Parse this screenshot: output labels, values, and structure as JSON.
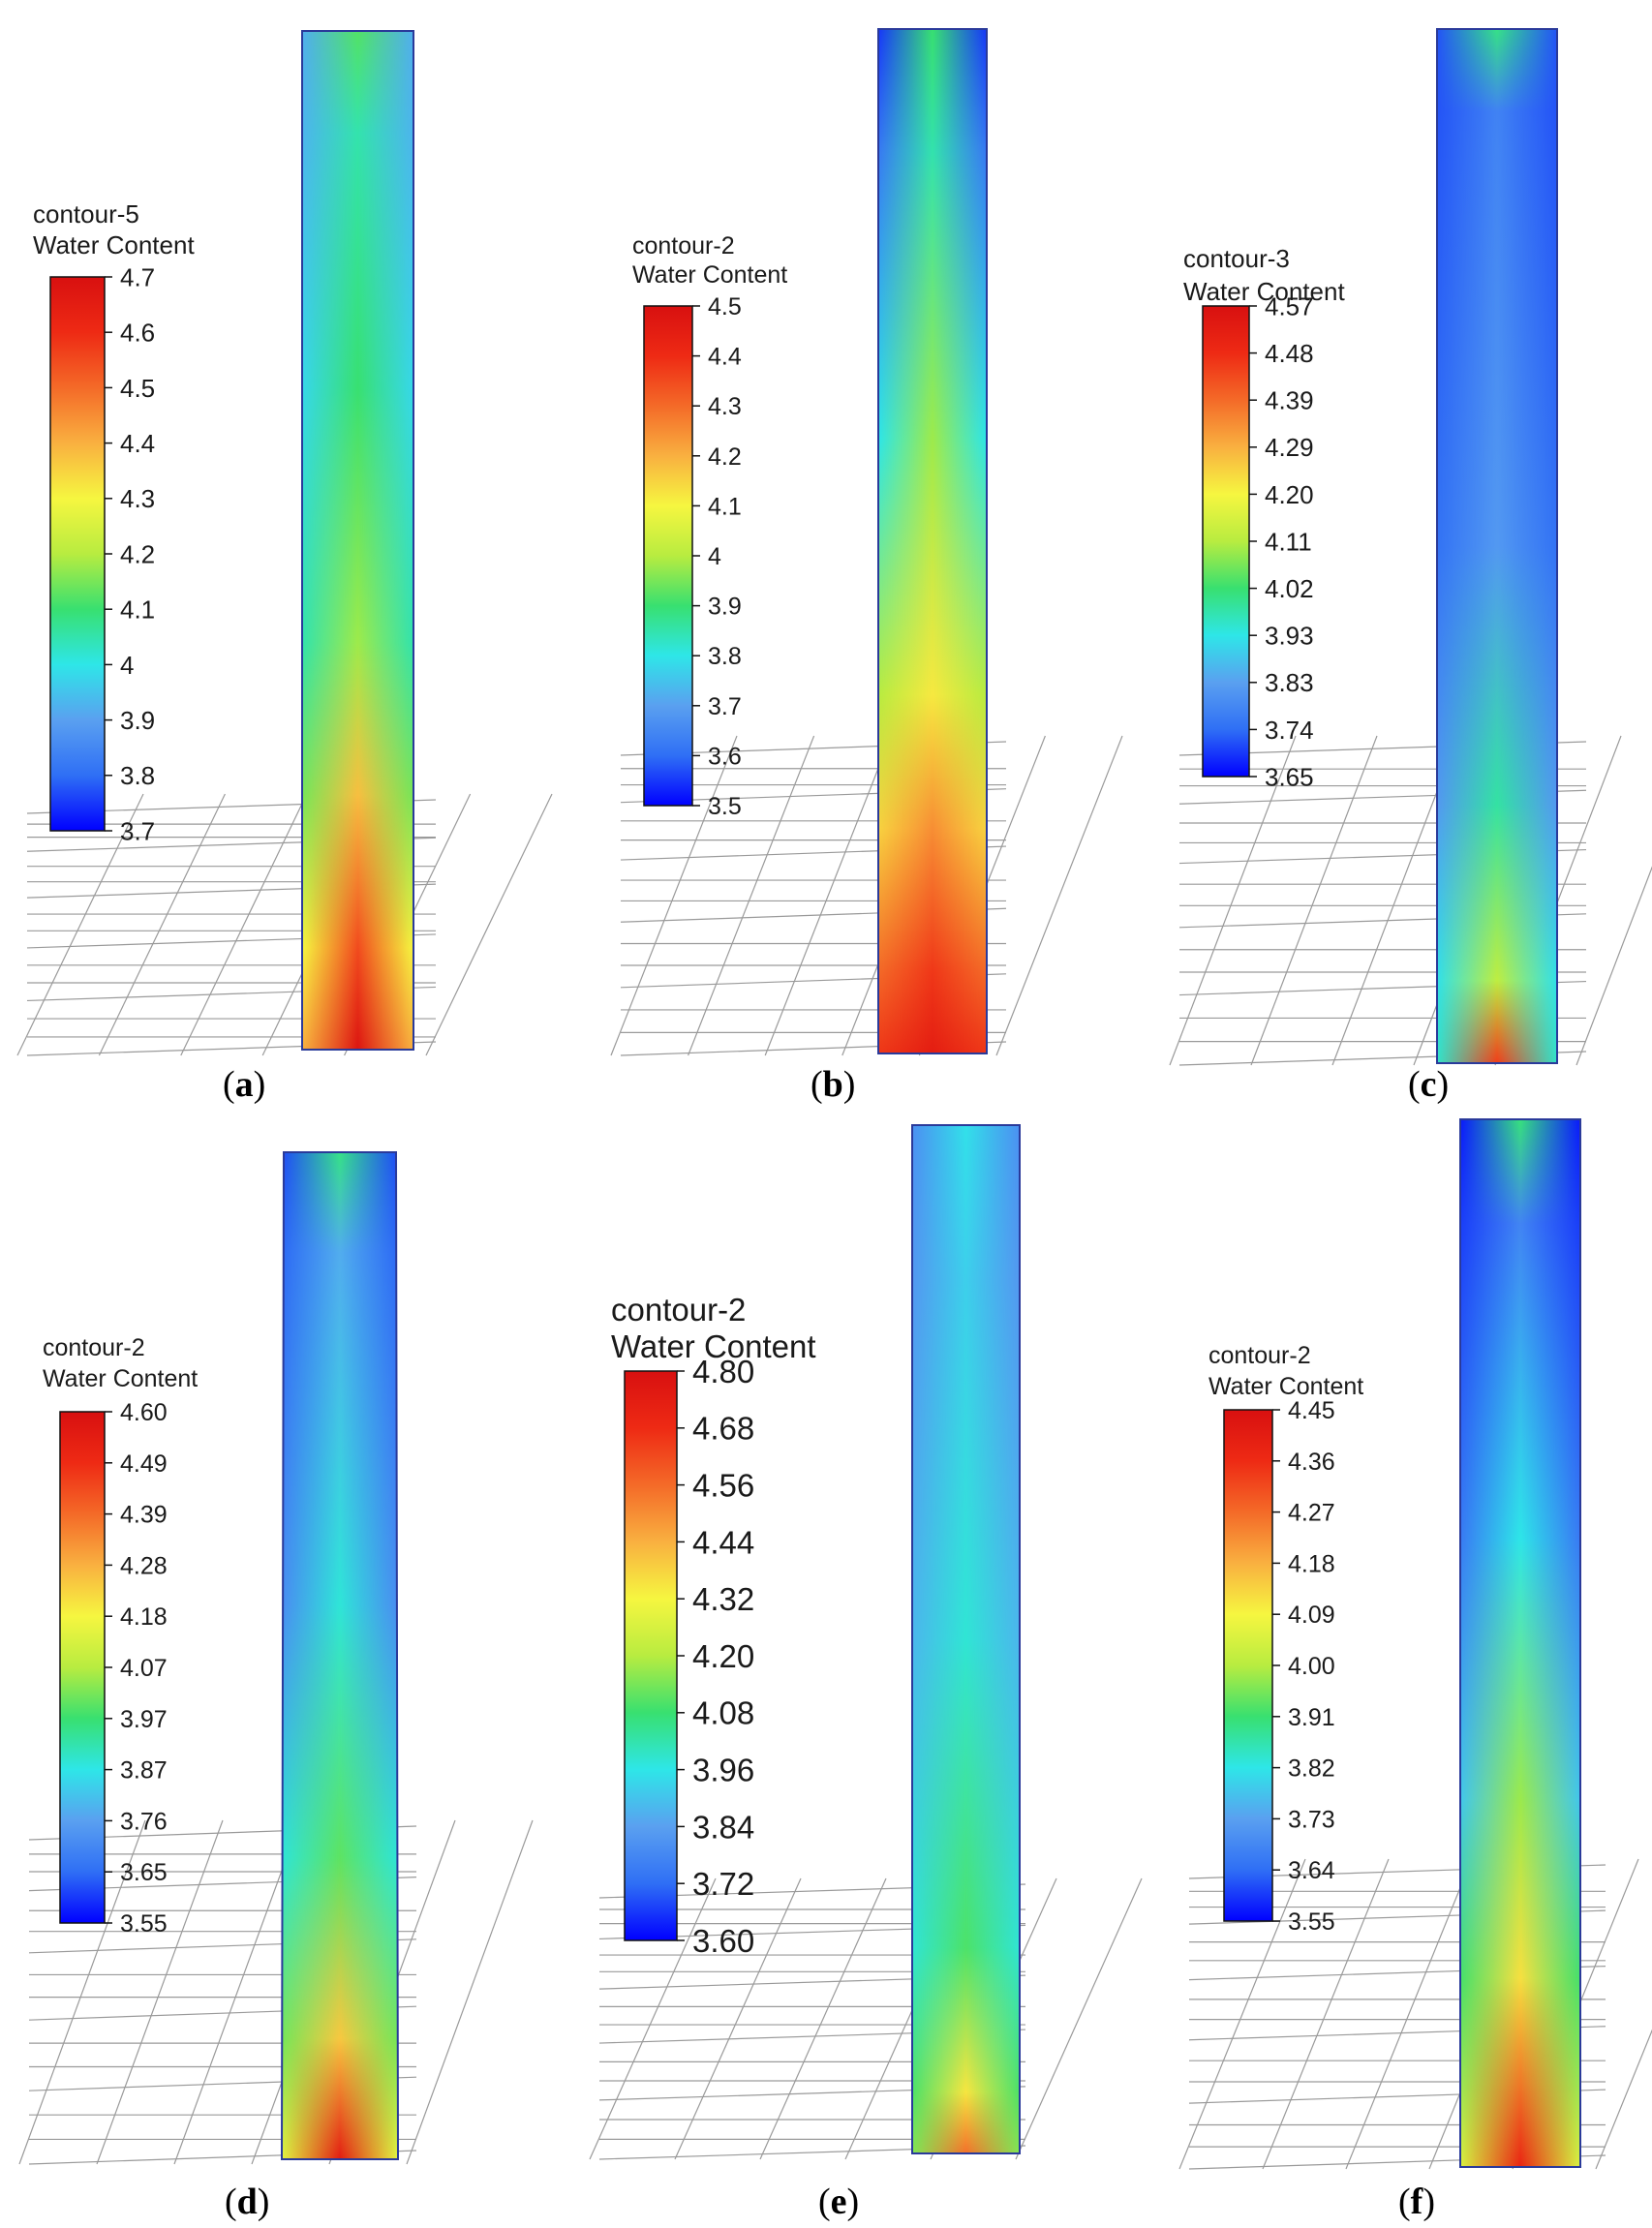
{
  "colors": {
    "cmap": [
      "#0000ff",
      "#2f6ff5",
      "#5aa0f0",
      "#2ee6e8",
      "#38e070",
      "#b8ec40",
      "#f6f640",
      "#f9b040",
      "#f46a28",
      "#ee2a14",
      "#d81010"
    ]
  },
  "chart_data": [
    {
      "type": "heatmap",
      "panel": "(a)",
      "caption_letter": "a",
      "title_line1": "contour-5",
      "title_line2": "Water Content",
      "vmin": 3.7,
      "vmax": 4.7,
      "ticks": [
        "4.7",
        "4.6",
        "4.5",
        "4.4",
        "4.3",
        "4.2",
        "4.1",
        "4",
        "3.9",
        "3.8",
        "3.7"
      ],
      "column_profile": [
        {
          "pos": 0.0,
          "center": 4.12,
          "edge": 3.92
        },
        {
          "pos": 0.1,
          "center": 4.05,
          "edge": 3.93
        },
        {
          "pos": 0.35,
          "center": 4.1,
          "edge": 3.98
        },
        {
          "pos": 0.6,
          "center": 4.18,
          "edge": 4.05
        },
        {
          "pos": 0.75,
          "center": 4.38,
          "edge": 4.15
        },
        {
          "pos": 0.9,
          "center": 4.55,
          "edge": 4.3
        },
        {
          "pos": 1.0,
          "center": 4.68,
          "edge": 4.4
        }
      ]
    },
    {
      "type": "heatmap",
      "panel": "(b)",
      "caption_letter": "b",
      "title_line1": "contour-2",
      "title_line2": "Water Content",
      "vmin": 3.5,
      "vmax": 4.5,
      "ticks": [
        "4.5",
        "4.4",
        "4.3",
        "4.2",
        "4.1",
        "4",
        "3.9",
        "3.8",
        "3.7",
        "3.6",
        "3.5"
      ],
      "column_profile": [
        {
          "pos": 0.0,
          "center": 3.9,
          "edge": 3.55
        },
        {
          "pos": 0.12,
          "center": 3.85,
          "edge": 3.62
        },
        {
          "pos": 0.4,
          "center": 3.98,
          "edge": 3.8
        },
        {
          "pos": 0.65,
          "center": 4.12,
          "edge": 4.0
        },
        {
          "pos": 0.78,
          "center": 4.25,
          "edge": 4.15
        },
        {
          "pos": 0.92,
          "center": 4.38,
          "edge": 4.3
        },
        {
          "pos": 1.0,
          "center": 4.45,
          "edge": 4.38
        }
      ]
    },
    {
      "type": "heatmap",
      "panel": "(c)",
      "caption_letter": "c",
      "title_line1": "contour-3",
      "title_line2": "Water Content",
      "vmin": 3.65,
      "vmax": 4.57,
      "ticks": [
        "4.57",
        "4.48",
        "4.39",
        "4.29",
        "4.20",
        "4.11",
        "4.02",
        "3.93",
        "3.83",
        "3.74",
        "3.65"
      ],
      "column_profile": [
        {
          "pos": 0.0,
          "center": 4.0,
          "edge": 3.72
        },
        {
          "pos": 0.08,
          "center": 3.78,
          "edge": 3.72
        },
        {
          "pos": 0.5,
          "center": 3.82,
          "edge": 3.75
        },
        {
          "pos": 0.75,
          "center": 3.98,
          "edge": 3.82
        },
        {
          "pos": 0.92,
          "center": 4.12,
          "edge": 3.92
        },
        {
          "pos": 1.0,
          "center": 4.45,
          "edge": 3.95
        }
      ]
    },
    {
      "type": "heatmap",
      "panel": "(d)",
      "caption_letter": "d",
      "title_line1": "contour-2",
      "title_line2": "Water Content",
      "vmin": 3.55,
      "vmax": 4.6,
      "ticks": [
        "4.60",
        "4.49",
        "4.39",
        "4.28",
        "4.18",
        "4.07",
        "3.97",
        "3.87",
        "3.76",
        "3.65",
        "3.55"
      ],
      "column_profile": [
        {
          "pos": 0.0,
          "center": 3.95,
          "edge": 3.62
        },
        {
          "pos": 0.1,
          "center": 3.78,
          "edge": 3.65
        },
        {
          "pos": 0.45,
          "center": 3.88,
          "edge": 3.72
        },
        {
          "pos": 0.7,
          "center": 4.0,
          "edge": 3.88
        },
        {
          "pos": 0.88,
          "center": 4.25,
          "edge": 4.02
        },
        {
          "pos": 1.0,
          "center": 4.55,
          "edge": 4.15
        }
      ]
    },
    {
      "type": "heatmap",
      "panel": "(e)",
      "caption_letter": "e",
      "title_line1": "contour-2",
      "title_line2": "Water Content",
      "vmin": 3.6,
      "vmax": 4.8,
      "ticks": [
        "4.80",
        "4.68",
        "4.56",
        "4.44",
        "4.32",
        "4.20",
        "4.08",
        "3.96",
        "3.84",
        "3.72",
        "3.60"
      ],
      "column_profile": [
        {
          "pos": 0.0,
          "center": 3.95,
          "edge": 3.8
        },
        {
          "pos": 0.15,
          "center": 3.92,
          "edge": 3.82
        },
        {
          "pos": 0.5,
          "center": 3.98,
          "edge": 3.88
        },
        {
          "pos": 0.8,
          "center": 4.1,
          "edge": 3.98
        },
        {
          "pos": 0.94,
          "center": 4.35,
          "edge": 4.1
        },
        {
          "pos": 1.0,
          "center": 4.55,
          "edge": 4.15
        }
      ]
    },
    {
      "type": "heatmap",
      "panel": "(f)",
      "caption_letter": "f",
      "title_line1": "contour-2",
      "title_line2": "Water Content",
      "vmin": 3.55,
      "vmax": 4.45,
      "ticks": [
        "4.45",
        "4.36",
        "4.27",
        "4.18",
        "4.09",
        "4.00",
        "3.91",
        "3.82",
        "3.73",
        "3.64",
        "3.55"
      ],
      "column_profile": [
        {
          "pos": 0.0,
          "center": 3.9,
          "edge": 3.57
        },
        {
          "pos": 0.1,
          "center": 3.68,
          "edge": 3.6
        },
        {
          "pos": 0.4,
          "center": 3.82,
          "edge": 3.66
        },
        {
          "pos": 0.65,
          "center": 3.98,
          "edge": 3.78
        },
        {
          "pos": 0.82,
          "center": 4.12,
          "edge": 3.92
        },
        {
          "pos": 1.0,
          "center": 4.38,
          "edge": 4.05
        }
      ]
    }
  ]
}
